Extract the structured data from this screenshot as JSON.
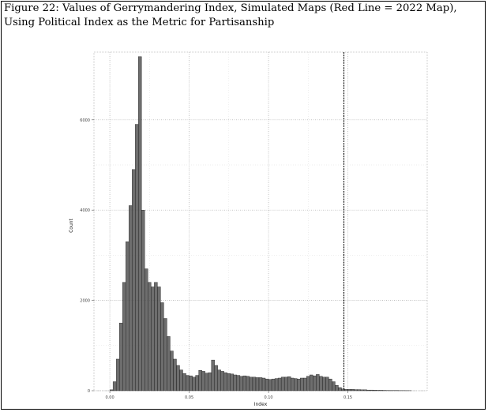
{
  "figure": {
    "caption_line1": "Figure 22: Values of Gerrymandering Index, Simulated Maps (Red Line = 2022 Map),",
    "caption_line2": "Using Political Index as the Metric for Partisanship"
  },
  "chart_data": {
    "type": "bar",
    "title": "",
    "xlabel": "Index",
    "ylabel": "Count",
    "x_ticks": [
      "0.00",
      "0.05",
      "0.10",
      "0.15"
    ],
    "y_ticks": [
      "0",
      "2000",
      "4000",
      "6000"
    ],
    "xlim": [
      -0.01,
      0.2
    ],
    "ylim": [
      0,
      7500
    ],
    "grid": true,
    "reference_line": {
      "label": "2022 Map",
      "x": 0.1475,
      "color": "#000000"
    },
    "bar_color": "#555555",
    "bin_width": 0.002,
    "series": [
      {
        "x": [
          0.0,
          0.002,
          0.004,
          0.006,
          0.008,
          0.01,
          0.012,
          0.014,
          0.016,
          0.018,
          0.02,
          0.022,
          0.024,
          0.026,
          0.028,
          0.03,
          0.032,
          0.034,
          0.036,
          0.038,
          0.04,
          0.042,
          0.044,
          0.046,
          0.048,
          0.05,
          0.052,
          0.054,
          0.056,
          0.058,
          0.06,
          0.062,
          0.064,
          0.066,
          0.068,
          0.07,
          0.072,
          0.074,
          0.076,
          0.078,
          0.08,
          0.082,
          0.084,
          0.086,
          0.088,
          0.09,
          0.092,
          0.094,
          0.096,
          0.098,
          0.1,
          0.102,
          0.104,
          0.106,
          0.108,
          0.11,
          0.112,
          0.114,
          0.116,
          0.118,
          0.12,
          0.122,
          0.124,
          0.126,
          0.128,
          0.13,
          0.132,
          0.134,
          0.136,
          0.138,
          0.14,
          0.142,
          0.144,
          0.146,
          0.148,
          0.15,
          0.152,
          0.154,
          0.156,
          0.158,
          0.16,
          0.162,
          0.164,
          0.166,
          0.168,
          0.17,
          0.172,
          0.174,
          0.176,
          0.178,
          0.18,
          0.182,
          0.184,
          0.186,
          0.188
        ],
        "values": [
          20,
          200,
          700,
          1500,
          2400,
          3300,
          4100,
          4900,
          5900,
          7400,
          4000,
          2700,
          2400,
          2300,
          2400,
          2300,
          1950,
          1600,
          1200,
          880,
          700,
          560,
          460,
          380,
          340,
          330,
          300,
          340,
          450,
          430,
          390,
          400,
          680,
          560,
          460,
          430,
          400,
          380,
          370,
          350,
          340,
          320,
          330,
          320,
          300,
          300,
          290,
          290,
          280,
          260,
          250,
          260,
          270,
          280,
          300,
          300,
          310,
          280,
          270,
          260,
          280,
          280,
          320,
          350,
          330,
          360,
          320,
          300,
          300,
          260,
          200,
          120,
          70,
          40,
          30,
          30,
          30,
          25,
          25,
          20,
          20,
          15,
          15,
          12,
          10,
          10,
          8,
          6,
          5,
          5,
          4,
          3,
          3,
          2,
          2
        ]
      }
    ]
  }
}
